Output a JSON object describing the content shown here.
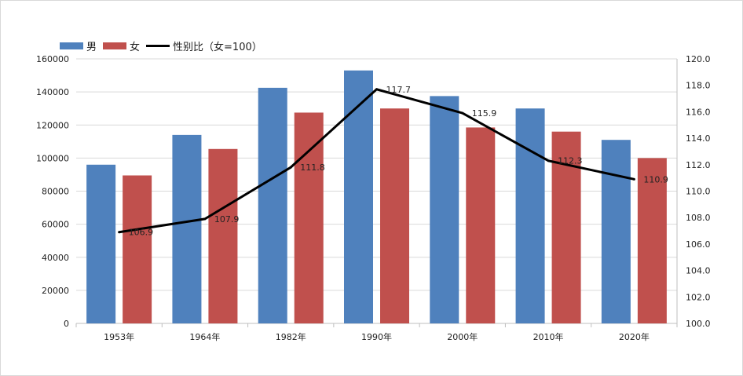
{
  "chart_data": {
    "type": "bar",
    "categories": [
      "1953年",
      "1964年",
      "1982年",
      "1990年",
      "2000年",
      "2010年",
      "2020年"
    ],
    "series": [
      {
        "name": "男",
        "type": "bar",
        "axis": "left",
        "color": "#4f81bd",
        "values": [
          96000,
          114000,
          142500,
          153000,
          137500,
          130000,
          111000
        ]
      },
      {
        "name": "女",
        "type": "bar",
        "axis": "left",
        "color": "#c0504d",
        "values": [
          89500,
          105500,
          127500,
          130000,
          118500,
          116000,
          100000
        ]
      },
      {
        "name": "性别比（女=100）",
        "type": "line",
        "axis": "right",
        "color": "#000000",
        "values": [
          106.9,
          107.9,
          111.8,
          117.7,
          115.9,
          112.3,
          110.9
        ]
      }
    ],
    "data_labels": [
      "106.9",
      "107.9",
      "111.8",
      "117.7",
      "115.9",
      "112.3",
      "110.9"
    ],
    "y_left": {
      "min": 0,
      "max": 160000,
      "ticks": [
        "0",
        "20000",
        "40000",
        "60000",
        "80000",
        "100000",
        "120000",
        "140000",
        "160000"
      ]
    },
    "y_right": {
      "min": 100,
      "max": 120,
      "ticks": [
        "100.0",
        "102.0",
        "104.0",
        "106.0",
        "108.0",
        "110.0",
        "112.0",
        "114.0",
        "116.0",
        "118.0",
        "120.0"
      ]
    },
    "grid": true,
    "legend_position": "top-left",
    "title": "",
    "xlabel": "",
    "ylabel": ""
  }
}
